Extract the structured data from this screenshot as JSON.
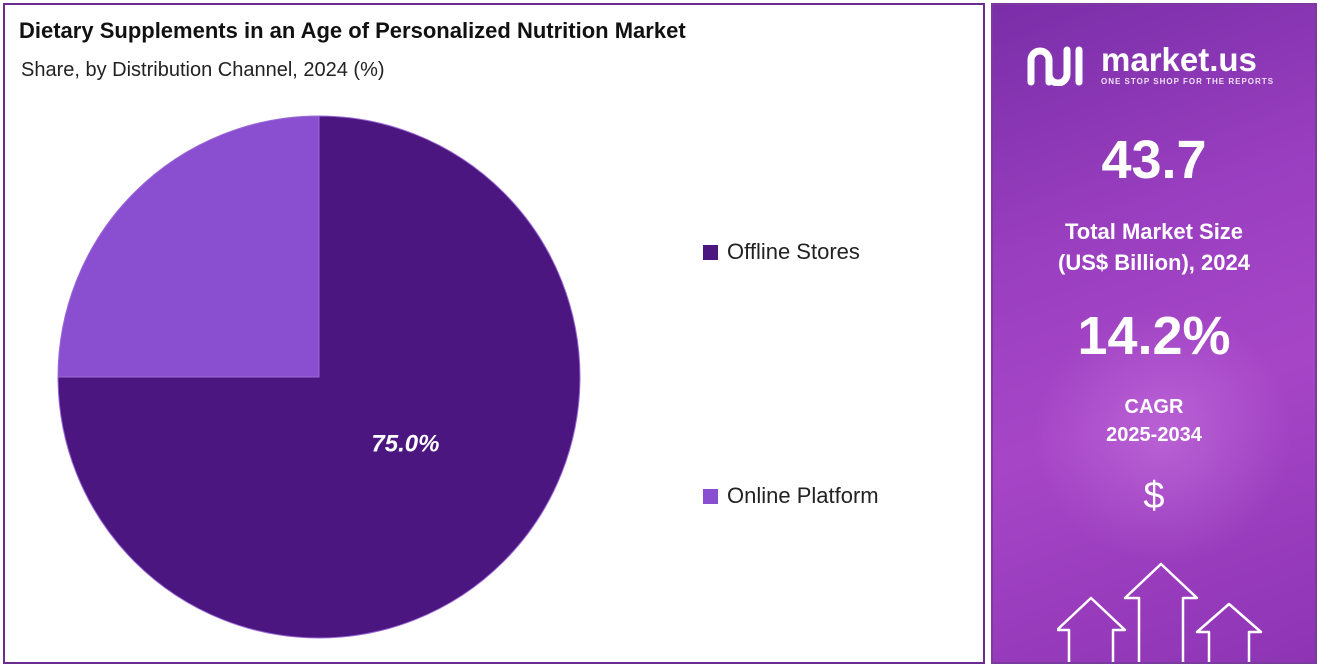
{
  "header": {
    "title": "Dietary Supplements in an Age of Personalized Nutrition Market",
    "subtitle": "Share, by Distribution Channel, 2024 (%)"
  },
  "chart_data": {
    "type": "pie",
    "title": "Dietary Supplements in an Age of Personalized Nutrition Market",
    "subtitle": "Share, by Distribution Channel, 2024 (%)",
    "categories": [
      "Offline Stores",
      "Online Platform"
    ],
    "values": [
      75.0,
      25.0
    ],
    "data_labels": [
      "75.0%",
      ""
    ],
    "colors": [
      "#4b1680",
      "#8a4fd0"
    ],
    "legend_position": "right"
  },
  "brand": {
    "name": "market.us",
    "tagline": "ONE STOP SHOP FOR THE REPORTS"
  },
  "stats": {
    "market_size_value": "43.7",
    "market_size_label_line1": "Total Market Size",
    "market_size_label_line2": "(US$ Billion), 2024",
    "cagr_value": "14.2%",
    "cagr_label_line1": "CAGR",
    "cagr_label_line2": "2025-2034",
    "currency_symbol": "$"
  },
  "icons": {
    "currency": "dollar-icon",
    "growth": "growth-arrows-icon"
  }
}
